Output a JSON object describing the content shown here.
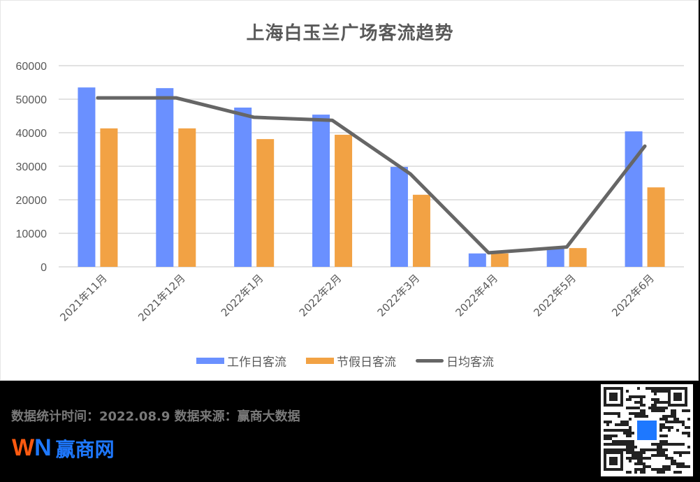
{
  "title": "上海白玉兰广场客流趋势",
  "colors": {
    "workday": "#6a90ff",
    "holiday": "#f2a244",
    "average": "#666666",
    "grid": "#d9d9d9",
    "logo_orange": "#ff5a10",
    "logo_blue": "#1e78ff"
  },
  "legend": [
    {
      "label": "工作日客流",
      "type": "bar",
      "color": "#6a90ff"
    },
    {
      "label": "节假日客流",
      "type": "bar",
      "color": "#f2a244"
    },
    {
      "label": "日均客流",
      "type": "line",
      "color": "#666666"
    }
  ],
  "chart_data": {
    "type": "bar",
    "title": "上海白玉兰广场客流趋势",
    "xlabel": "",
    "ylabel": "",
    "ylim": [
      0,
      60000
    ],
    "yticks": [
      0,
      10000,
      20000,
      30000,
      40000,
      50000,
      60000
    ],
    "grid": true,
    "legend_position": "bottom",
    "categories": [
      "2021年11月",
      "2021年12月",
      "2022年1月",
      "2022年2月",
      "2022年3月",
      "2022年4月",
      "2022年5月",
      "2022年6月"
    ],
    "series": [
      {
        "name": "工作日客流",
        "type": "bar",
        "values": [
          53500,
          53300,
          47500,
          45400,
          29800,
          4000,
          5400,
          40400
        ]
      },
      {
        "name": "节假日客流",
        "type": "bar",
        "values": [
          41300,
          41300,
          38100,
          39400,
          21500,
          4000,
          5600,
          23700
        ]
      },
      {
        "name": "日均客流",
        "type": "line",
        "values": [
          50400,
          50400,
          44600,
          43700,
          27700,
          4200,
          5900,
          36000
        ]
      }
    ]
  },
  "footer": {
    "stats_text": "数据统计时间：2022.08.9  数据来源：赢商大数据",
    "logo_w": "W",
    "logo_n": "N",
    "logo_cn": "赢商网",
    "qr_label": "赢商网"
  }
}
